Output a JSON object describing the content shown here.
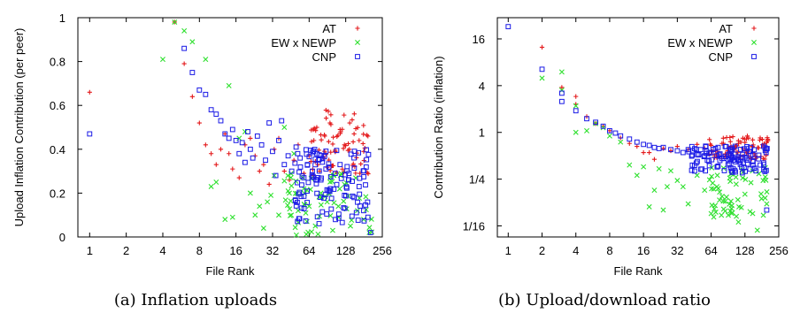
{
  "chart_data": [
    {
      "type": "scatter",
      "caption": "(a) Inflation uploads",
      "xlabel": "File Rank",
      "ylabel": "Upload Inflation Contribution (per peer)",
      "x_scale": "log2",
      "xlim": [
        0.8,
        256
      ],
      "ylim": [
        0,
        1
      ],
      "x_ticks": [
        1,
        2,
        4,
        8,
        16,
        32,
        64,
        128,
        256
      ],
      "x_tick_labels": [
        "1",
        "2",
        "4",
        "8",
        "16",
        "32",
        "64",
        "128",
        "256"
      ],
      "y_ticks": [
        0,
        0.2,
        0.4,
        0.6,
        0.8,
        1
      ],
      "y_tick_labels": [
        "0",
        "0.2",
        "0.4",
        "0.6",
        "0.8",
        "1"
      ],
      "legend_position": "top-right",
      "series": [
        {
          "name": "AT",
          "color": "#e41a1c",
          "marker": "plus",
          "seed": 11,
          "points": [
            [
              1,
              0.66
            ],
            [
              5,
              0.98
            ],
            [
              6,
              0.79
            ],
            [
              7,
              0.64
            ],
            [
              8,
              0.52
            ],
            [
              9,
              0.42
            ],
            [
              10,
              0.38
            ],
            [
              11,
              0.33
            ],
            [
              12,
              0.4
            ],
            [
              13,
              0.47
            ],
            [
              14,
              0.38
            ],
            [
              15,
              0.31
            ],
            [
              17,
              0.27
            ],
            [
              19,
              0.42
            ],
            [
              21,
              0.45
            ],
            [
              23,
              0.37
            ],
            [
              25,
              0.3
            ],
            [
              27,
              0.33
            ],
            [
              30,
              0.24
            ],
            [
              33,
              0.4
            ],
            [
              36,
              0.45
            ],
            [
              40,
              0.3
            ],
            [
              44,
              0.26
            ],
            [
              48,
              0.35
            ],
            [
              52,
              0.42
            ],
            [
              58,
              0.29
            ],
            [
              64,
              0.37
            ],
            [
              70,
              0.44
            ],
            [
              78,
              0.3
            ],
            [
              86,
              0.46
            ],
            [
              95,
              0.52
            ],
            [
              105,
              0.39
            ],
            [
              115,
              0.49
            ],
            [
              125,
              0.42
            ],
            [
              138,
              0.52
            ],
            [
              150,
              0.47
            ],
            [
              165,
              0.44
            ],
            [
              180,
              0.39
            ],
            [
              195,
              0.46
            ]
          ],
          "cloud": {
            "x_range": [
              64,
              200
            ],
            "y_range": [
              0.28,
              0.58
            ],
            "count": 70
          }
        },
        {
          "name": "EW x NEWP",
          "color": "#2ee02e",
          "marker": "cross",
          "seed": 23,
          "points": [
            [
              4,
              0.81
            ],
            [
              5,
              0.98
            ],
            [
              6,
              0.94
            ],
            [
              7,
              0.89
            ],
            [
              9,
              0.81
            ],
            [
              10,
              0.23
            ],
            [
              11,
              0.25
            ],
            [
              13,
              0.08
            ],
            [
              14,
              0.69
            ],
            [
              15,
              0.09
            ],
            [
              17,
              0.45
            ],
            [
              19,
              0.48
            ],
            [
              21,
              0.2
            ],
            [
              23,
              0.1
            ],
            [
              25,
              0.14
            ],
            [
              27,
              0.04
            ],
            [
              29,
              0.16
            ],
            [
              31,
              0.19
            ],
            [
              33,
              0.28
            ],
            [
              36,
              0.1
            ],
            [
              40,
              0.5
            ],
            [
              44,
              0.2
            ],
            [
              48,
              0.38
            ],
            [
              52,
              0.12
            ],
            [
              58,
              0.22
            ],
            [
              64,
              0.14
            ],
            [
              72,
              0.05
            ],
            [
              80,
              0.2
            ],
            [
              90,
              0.16
            ],
            [
              100,
              0.03
            ],
            [
              112,
              0.09
            ],
            [
              125,
              0.24
            ],
            [
              140,
              0.05
            ],
            [
              160,
              0.12
            ],
            [
              180,
              0.08
            ],
            [
              200,
              0.02
            ]
          ],
          "cloud": {
            "x_range": [
              40,
              210
            ],
            "y_range": [
              0.0,
              0.3
            ],
            "count": 60
          }
        },
        {
          "name": "CNP",
          "color": "#1a1ae6",
          "marker": "square",
          "seed": 37,
          "points": [
            [
              1,
              0.47
            ],
            [
              6,
              0.86
            ],
            [
              7,
              0.75
            ],
            [
              8,
              0.67
            ],
            [
              9,
              0.65
            ],
            [
              10,
              0.58
            ],
            [
              11,
              0.56
            ],
            [
              12,
              0.53
            ],
            [
              13,
              0.47
            ],
            [
              14,
              0.45
            ],
            [
              15,
              0.49
            ],
            [
              16,
              0.44
            ],
            [
              17,
              0.38
            ],
            [
              18,
              0.43
            ],
            [
              19,
              0.34
            ],
            [
              20,
              0.48
            ],
            [
              21,
              0.4
            ],
            [
              22,
              0.36
            ],
            [
              24,
              0.46
            ],
            [
              26,
              0.42
            ],
            [
              28,
              0.35
            ],
            [
              30,
              0.52
            ],
            [
              32,
              0.39
            ],
            [
              34,
              0.28
            ],
            [
              36,
              0.44
            ],
            [
              38,
              0.53
            ],
            [
              40,
              0.33
            ],
            [
              43,
              0.37
            ],
            [
              46,
              0.3
            ],
            [
              50,
              0.41
            ],
            [
              54,
              0.36
            ],
            [
              58,
              0.27
            ],
            [
              62,
              0.33
            ],
            [
              68,
              0.3
            ],
            [
              74,
              0.38
            ],
            [
              80,
              0.26
            ],
            [
              88,
              0.31
            ],
            [
              96,
              0.22
            ],
            [
              105,
              0.29
            ],
            [
              115,
              0.33
            ],
            [
              125,
              0.19
            ],
            [
              135,
              0.26
            ],
            [
              150,
              0.18
            ],
            [
              165,
              0.23
            ],
            [
              180,
              0.12
            ],
            [
              195,
              0.09
            ],
            [
              205,
              0.02
            ]
          ],
          "cloud": {
            "x_range": [
              48,
              205
            ],
            "y_range": [
              0.06,
              0.4
            ],
            "count": 110
          }
        }
      ]
    },
    {
      "type": "scatter",
      "caption": "(b) Upload/download ratio",
      "xlabel": "File Rank",
      "ylabel": "Contribution Ratio  (inflation)",
      "x_scale": "log2",
      "y_scale": "log2",
      "xlim": [
        0.8,
        256
      ],
      "ylim": [
        0.045,
        30
      ],
      "x_ticks": [
        1,
        2,
        4,
        8,
        16,
        32,
        64,
        128,
        256
      ],
      "x_tick_labels": [
        "1",
        "2",
        "4",
        "8",
        "16",
        "32",
        "64",
        "128",
        "256"
      ],
      "y_ticks": [
        0.0625,
        0.25,
        1,
        4,
        16
      ],
      "y_tick_labels": [
        "1/16",
        "1/4",
        "1",
        "4",
        "16"
      ],
      "legend_position": "top-right",
      "series": [
        {
          "name": "AT",
          "color": "#e41a1c",
          "marker": "plus",
          "seed": 51,
          "points": [
            [
              2,
              12.5
            ],
            [
              3,
              3.8
            ],
            [
              4,
              2.9
            ],
            [
              4,
              2.3
            ],
            [
              5,
              1.6
            ],
            [
              6,
              1.3
            ],
            [
              7,
              1.2
            ],
            [
              8,
              1.05
            ],
            [
              10,
              0.85
            ],
            [
              12,
              0.72
            ],
            [
              14,
              0.66
            ],
            [
              16,
              0.55
            ],
            [
              18,
              0.55
            ],
            [
              20,
              0.45
            ],
            [
              24,
              0.62
            ],
            [
              28,
              0.58
            ],
            [
              32,
              0.66
            ],
            [
              40,
              0.6
            ],
            [
              48,
              0.7
            ],
            [
              56,
              0.62
            ],
            [
              64,
              0.68
            ],
            [
              80,
              0.72
            ],
            [
              96,
              0.66
            ],
            [
              112,
              0.78
            ],
            [
              128,
              0.74
            ],
            [
              150,
              0.8
            ],
            [
              175,
              0.85
            ],
            [
              200,
              0.74
            ]
          ],
          "cloud": {
            "x_range": [
              60,
              205
            ],
            "y_range": [
              0.45,
              0.9
            ],
            "count": 75
          }
        },
        {
          "name": "EW x NEWP",
          "color": "#2ee02e",
          "marker": "cross",
          "seed": 63,
          "points": [
            [
              2,
              5.0
            ],
            [
              3,
              6.0
            ],
            [
              3,
              3.5
            ],
            [
              4,
              2.2
            ],
            [
              4,
              1.0
            ],
            [
              5,
              1.05
            ],
            [
              6,
              1.3
            ],
            [
              7,
              1.15
            ],
            [
              8,
              0.9
            ],
            [
              10,
              0.75
            ],
            [
              12,
              0.38
            ],
            [
              14,
              0.28
            ],
            [
              16,
              0.36
            ],
            [
              18,
              0.11
            ],
            [
              20,
              0.18
            ],
            [
              22,
              0.34
            ],
            [
              24,
              0.1
            ],
            [
              26,
              0.2
            ],
            [
              28,
              0.32
            ],
            [
              32,
              0.24
            ],
            [
              36,
              0.2
            ],
            [
              40,
              0.12
            ],
            [
              48,
              0.28
            ],
            [
              56,
              0.18
            ],
            [
              64,
              0.09
            ],
            [
              72,
              0.2
            ],
            [
              80,
              0.15
            ],
            [
              96,
              0.13
            ],
            [
              112,
              0.07
            ],
            [
              128,
              0.16
            ],
            [
              150,
              0.09
            ],
            [
              165,
              0.055
            ],
            [
              180,
              0.14
            ],
            [
              200,
              0.12
            ]
          ],
          "cloud": {
            "x_range": [
              60,
              205
            ],
            "y_range": [
              0.08,
              0.35
            ],
            "count": 55
          }
        },
        {
          "name": "CNP",
          "color": "#1a1ae6",
          "marker": "square",
          "seed": 77,
          "points": [
            [
              1,
              23
            ],
            [
              2,
              6.5
            ],
            [
              3,
              3.2
            ],
            [
              3,
              2.5
            ],
            [
              4,
              1.9
            ],
            [
              5,
              1.5
            ],
            [
              6,
              1.35
            ],
            [
              7,
              1.2
            ],
            [
              8,
              1.05
            ],
            [
              9,
              0.98
            ],
            [
              10,
              0.9
            ],
            [
              12,
              0.82
            ],
            [
              14,
              0.75
            ],
            [
              16,
              0.7
            ],
            [
              18,
              0.68
            ],
            [
              20,
              0.64
            ],
            [
              22,
              0.62
            ],
            [
              24,
              0.64
            ],
            [
              28,
              0.6
            ],
            [
              32,
              0.58
            ],
            [
              36,
              0.55
            ],
            [
              40,
              0.6
            ],
            [
              44,
              0.58
            ],
            [
              48,
              0.52
            ],
            [
              56,
              0.5
            ],
            [
              64,
              0.55
            ],
            [
              72,
              0.5
            ],
            [
              80,
              0.46
            ],
            [
              96,
              0.5
            ],
            [
              112,
              0.44
            ],
            [
              128,
              0.48
            ],
            [
              150,
              0.42
            ],
            [
              175,
              0.38
            ],
            [
              200,
              0.1
            ]
          ],
          "cloud": {
            "x_range": [
              40,
              205
            ],
            "y_range": [
              0.3,
              0.68
            ],
            "count": 110
          }
        }
      ]
    }
  ]
}
